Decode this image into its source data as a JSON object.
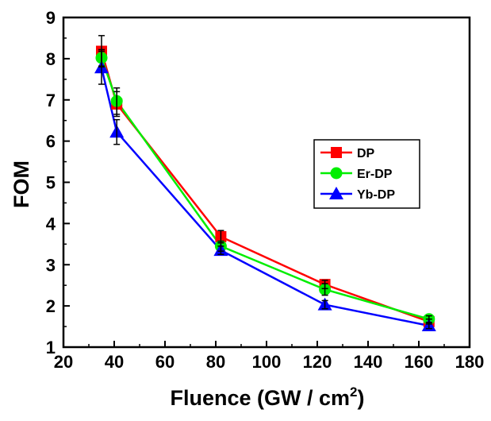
{
  "chart_data": {
    "type": "line",
    "title": "",
    "xlabel": "Fluence (GW / cm",
    "xlabel_superscript": "2",
    "xlabel_close": ")",
    "ylabel": "FOM",
    "xlim": [
      20,
      180
    ],
    "ylim": [
      1,
      9
    ],
    "xticks": [
      20,
      40,
      60,
      80,
      100,
      120,
      140,
      160,
      180
    ],
    "yticks": [
      1,
      2,
      3,
      4,
      5,
      6,
      7,
      8,
      9
    ],
    "grid": false,
    "legend_position": "right-middle",
    "series": [
      {
        "name": "DP",
        "color": "#ff0000",
        "marker": "square",
        "x": [
          35,
          41,
          82,
          123,
          164
        ],
        "y": [
          8.18,
          6.9,
          3.68,
          2.52,
          1.62
        ],
        "err": [
          0.38,
          0.3,
          0.15,
          0.1,
          0.06
        ]
      },
      {
        "name": "Er-DP",
        "color": "#00ee00",
        "marker": "circle",
        "x": [
          35,
          41,
          82,
          123,
          164
        ],
        "y": [
          8.02,
          6.97,
          3.45,
          2.4,
          1.68
        ],
        "err": [
          0.2,
          0.32,
          0.12,
          0.14,
          0.08
        ]
      },
      {
        "name": "Yb-DP",
        "color": "#0000ff",
        "marker": "triangle",
        "x": [
          35,
          41,
          82,
          123,
          164
        ],
        "y": [
          7.78,
          6.22,
          3.35,
          2.03,
          1.52
        ],
        "err": [
          0.4,
          0.3,
          0.1,
          0.1,
          0.07
        ]
      }
    ]
  }
}
